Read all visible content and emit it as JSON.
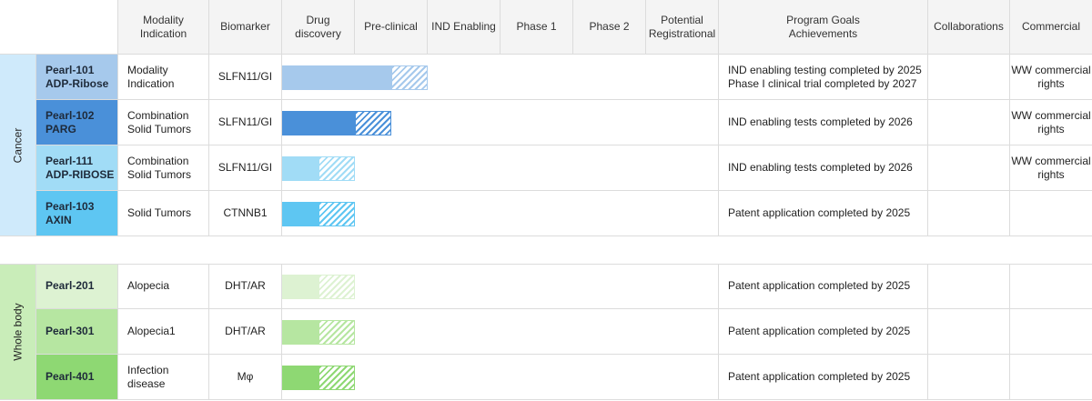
{
  "headers": {
    "modality": "Modality\nIndication",
    "biomarker": "Biomarker",
    "drug_discovery": "Drug\ndiscovery",
    "preclinical": "Pre-clinical",
    "ind_enabling": "IND Enabling",
    "phase1": "Phase 1",
    "phase2": "Phase 2",
    "registrational": "Potential\nRegistrational",
    "goals": "Program Goals\nAchievements",
    "collaborations": "Collaborations",
    "commercial": "Commercial"
  },
  "groups": [
    {
      "label": "Cancer",
      "color": "#cfeafb"
    },
    {
      "label": "Whole body",
      "color": "#c9edb9"
    }
  ],
  "programs": [
    {
      "name": "Pearl-101\nADP-Ribose",
      "indication": "Modality\nIndication",
      "biomarker": "SLFN11/GI",
      "goal": "IND enabling testing completed by 2025\nPhase I clinical trial completed by 2027",
      "collaborations": "",
      "commercial": "WW commercial\nrights",
      "name_bg": "#a6c9ec",
      "bar_color": "#a6c9ec",
      "progress_stages": 1.5,
      "target_stages": 2.0
    },
    {
      "name": "Pearl-102\nPARG",
      "indication": "Combination\nSolid Tumors",
      "biomarker": "SLFN11/GI",
      "goal": "IND enabling tests completed by 2026",
      "collaborations": "",
      "commercial": "WW commercial\nrights",
      "name_bg": "#4a90d9",
      "bar_color": "#4a90d9",
      "progress_stages": 1.0,
      "target_stages": 1.5
    },
    {
      "name": "Pearl-111\nADP-RIBOSE",
      "indication": "Combination\nSolid Tumors",
      "biomarker": "SLFN11/GI",
      "goal": "IND enabling tests completed by 2026",
      "collaborations": "",
      "commercial": "WW commercial\nrights",
      "name_bg": "#a1dcf6",
      "bar_color": "#a1dcf6",
      "progress_stages": 0.5,
      "target_stages": 1.0
    },
    {
      "name": "Pearl-103\nAXIN",
      "indication": "Solid Tumors",
      "biomarker": "CTNNB1",
      "goal": "Patent application completed by 2025",
      "collaborations": "",
      "commercial": "",
      "name_bg": "#5ec6f2",
      "bar_color": "#5ec6f2",
      "progress_stages": 0.5,
      "target_stages": 1.0
    },
    {
      "name": "Pearl-201",
      "indication": "Alopecia",
      "biomarker": "DHT/AR",
      "goal": "Patent application completed by 2025",
      "collaborations": "",
      "commercial": "",
      "name_bg": "#ddf2d2",
      "bar_color": "#ddf2d2",
      "progress_stages": 0.5,
      "target_stages": 1.0
    },
    {
      "name": "Pearl-301",
      "indication": "Alopecia1",
      "biomarker": "DHT/AR",
      "goal": "Patent application completed by 2025",
      "collaborations": "",
      "commercial": "",
      "name_bg": "#b6e6a1",
      "bar_color": "#b6e6a1",
      "progress_stages": 0.5,
      "target_stages": 1.0
    },
    {
      "name": "Pearl-401",
      "indication": "Infection disease",
      "biomarker": "Mφ",
      "goal": "Patent application completed by 2025",
      "collaborations": "",
      "commercial": "",
      "name_bg": "#8ed873",
      "bar_color": "#8ed873",
      "progress_stages": 0.5,
      "target_stages": 1.0
    }
  ]
}
